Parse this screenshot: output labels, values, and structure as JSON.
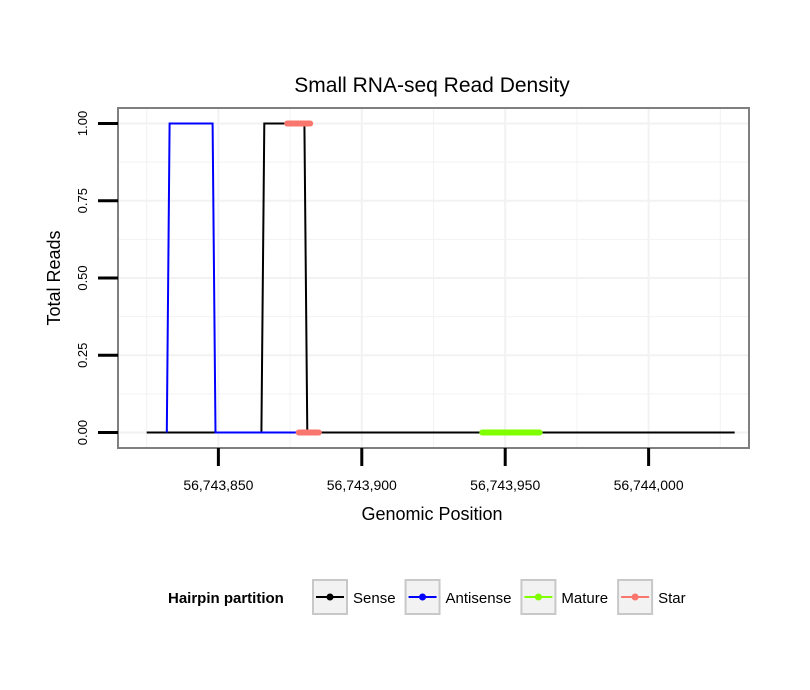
{
  "chart_data": {
    "type": "line",
    "title": "Small RNA-seq Read Density",
    "xlabel": "Genomic Position",
    "ylabel": "Total Reads",
    "xlim": [
      56743815,
      56744035
    ],
    "ylim": [
      -0.05,
      1.05
    ],
    "xticks": [
      {
        "value": 56743850,
        "label": "56,743,850"
      },
      {
        "value": 56743900,
        "label": "56,743,900"
      },
      {
        "value": 56743950,
        "label": "56,743,950"
      },
      {
        "value": 56744000,
        "label": "56,744,000"
      }
    ],
    "yticks": [
      {
        "value": 0,
        "label": "0.00"
      },
      {
        "value": 0.25,
        "label": "0.25"
      },
      {
        "value": 0.5,
        "label": "0.50"
      },
      {
        "value": 0.75,
        "label": "0.75"
      },
      {
        "value": 1,
        "label": "1.00"
      }
    ],
    "series": [
      {
        "name": "Sense",
        "color": "#000000",
        "width": 2,
        "points": [
          [
            56743825,
            0
          ],
          [
            56743865,
            0
          ],
          [
            56743866,
            1
          ],
          [
            56743880,
            1
          ],
          [
            56743881,
            0
          ],
          [
            56744030,
            0
          ]
        ]
      },
      {
        "name": "Antisense",
        "color": "#0000ff",
        "width": 2,
        "points": [
          [
            56743832,
            0
          ],
          [
            56743833,
            1
          ],
          [
            56743848,
            1
          ],
          [
            56743849,
            0
          ],
          [
            56743881,
            0
          ]
        ]
      },
      {
        "name": "Mature",
        "color": "#7fff00",
        "width": 6,
        "points": [
          [
            56743942,
            0
          ],
          [
            56743962,
            0
          ]
        ]
      },
      {
        "name": "Star",
        "color": "#f8766d",
        "width": 6,
        "points": [
          [
            56743874,
            1
          ],
          [
            56743882,
            1
          ]
        ],
        "extra": [
          [
            56743878,
            0
          ],
          [
            56743885,
            0
          ]
        ]
      }
    ],
    "legend": {
      "title": "Hairpin partition",
      "position": "bottom",
      "entries": [
        {
          "label": "Sense",
          "color": "#000000"
        },
        {
          "label": "Antisense",
          "color": "#0000ff"
        },
        {
          "label": "Mature",
          "color": "#7fff00"
        },
        {
          "label": "Star",
          "color": "#f8766d"
        }
      ]
    }
  }
}
